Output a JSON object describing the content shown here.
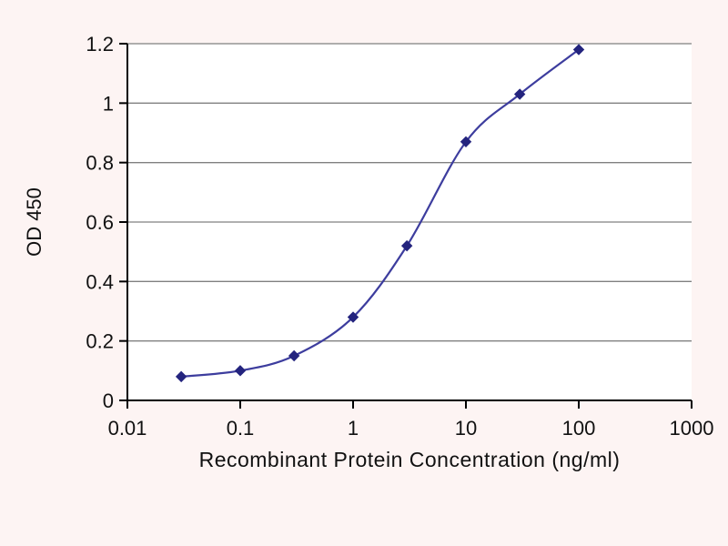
{
  "chart_data": {
    "type": "line",
    "title": "",
    "xlabel": "Recombinant Protein Concentration (ng/ml)",
    "ylabel": "OD 450",
    "x_scale": "log",
    "xlim": [
      0.01,
      1000
    ],
    "ylim": [
      0,
      1.2
    ],
    "x": [
      0.03,
      0.1,
      0.3,
      1,
      3,
      10,
      30,
      100
    ],
    "y": [
      0.08,
      0.1,
      0.15,
      0.28,
      0.52,
      0.87,
      1.03,
      1.18
    ],
    "x_ticks": [
      0.01,
      0.1,
      1,
      10,
      100,
      1000
    ],
    "x_tick_labels": [
      "0.01",
      "0.1",
      "1",
      "10",
      "100",
      "1000"
    ],
    "y_ticks": [
      0,
      0.2,
      0.4,
      0.6,
      0.8,
      1,
      1.2
    ],
    "y_tick_labels": [
      "0",
      "0.2",
      "0.4",
      "0.6",
      "0.8",
      "1",
      "1.2"
    ],
    "grid": "horizontal",
    "legend": "none",
    "line_color": "#3d3d9e",
    "marker": "diamond",
    "marker_color": "#24247e",
    "axis_color": "#000000",
    "tick_label_color": "#111111",
    "grid_color": "#808080",
    "background": "#fdf4f3",
    "plot_background": "#ffffff"
  }
}
